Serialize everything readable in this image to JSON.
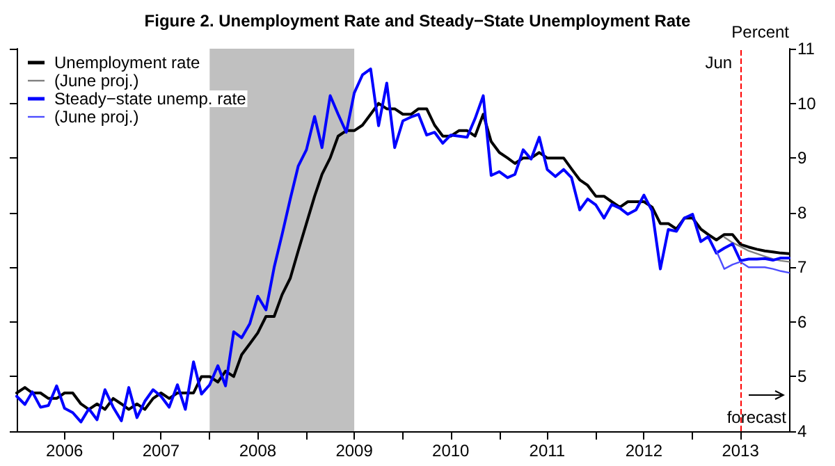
{
  "chart_data": {
    "type": "line",
    "title": "Figure 2. Unemployment Rate and Steady−State Unemployment Rate",
    "ylabel": "Percent",
    "x": [
      "2006-01",
      "2006-02",
      "2006-03",
      "2006-04",
      "2006-05",
      "2006-06",
      "2006-07",
      "2006-08",
      "2006-09",
      "2006-10",
      "2006-11",
      "2006-12",
      "2007-01",
      "2007-02",
      "2007-03",
      "2007-04",
      "2007-05",
      "2007-06",
      "2007-07",
      "2007-08",
      "2007-09",
      "2007-10",
      "2007-11",
      "2007-12",
      "2008-01",
      "2008-02",
      "2008-03",
      "2008-04",
      "2008-05",
      "2008-06",
      "2008-07",
      "2008-08",
      "2008-09",
      "2008-10",
      "2008-11",
      "2008-12",
      "2009-01",
      "2009-02",
      "2009-03",
      "2009-04",
      "2009-05",
      "2009-06",
      "2009-07",
      "2009-08",
      "2009-09",
      "2009-10",
      "2009-11",
      "2009-12",
      "2010-01",
      "2010-02",
      "2010-03",
      "2010-04",
      "2010-05",
      "2010-06",
      "2010-07",
      "2010-08",
      "2010-09",
      "2010-10",
      "2010-11",
      "2010-12",
      "2011-01",
      "2011-02",
      "2011-03",
      "2011-04",
      "2011-05",
      "2011-06",
      "2011-07",
      "2011-08",
      "2011-09",
      "2011-10",
      "2011-11",
      "2011-12",
      "2012-01",
      "2012-02",
      "2012-03",
      "2012-04",
      "2012-05",
      "2012-06",
      "2012-07",
      "2012-08",
      "2012-09",
      "2012-10",
      "2012-11",
      "2012-12",
      "2013-01",
      "2013-02",
      "2013-03",
      "2013-04",
      "2013-05",
      "2013-06",
      "2013-07",
      "2013-08",
      "2013-09",
      "2013-10",
      "2013-11",
      "2013-12",
      "2014-01"
    ],
    "series": [
      {
        "name": "Unemployment rate",
        "color": "#000000",
        "values": [
          4.7,
          4.8,
          4.7,
          4.7,
          4.6,
          4.6,
          4.7,
          4.7,
          4.5,
          4.4,
          4.5,
          4.4,
          4.6,
          4.5,
          4.4,
          4.5,
          4.4,
          4.6,
          4.7,
          4.6,
          4.7,
          4.7,
          4.7,
          5.0,
          5.0,
          4.9,
          5.1,
          5.0,
          5.4,
          5.6,
          5.8,
          6.1,
          6.1,
          6.5,
          6.8,
          7.3,
          7.8,
          8.3,
          8.7,
          9.0,
          9.4,
          9.5,
          9.5,
          9.6,
          9.8,
          10.0,
          9.9,
          9.9,
          9.8,
          9.8,
          9.9,
          9.9,
          9.6,
          9.4,
          9.4,
          9.5,
          9.5,
          9.4,
          9.8,
          9.3,
          9.1,
          9.0,
          8.9,
          9.0,
          9.0,
          9.1,
          9.0,
          9.0,
          9.0,
          8.8,
          8.6,
          8.5,
          8.3,
          8.3,
          8.2,
          8.1,
          8.2,
          8.2,
          8.2,
          8.1,
          7.8,
          7.8,
          7.7,
          7.9,
          7.9,
          7.7,
          7.6,
          7.5,
          7.6,
          7.6,
          7.42,
          7.37,
          7.33,
          7.3,
          7.28,
          7.26,
          7.25
        ]
      },
      {
        "name": "(June proj.)",
        "color": "#808080",
        "x": [
          "2013-05",
          "2013-06",
          "2013-07",
          "2013-08",
          "2013-09",
          "2013-10",
          "2013-11",
          "2013-12",
          "2014-01"
        ],
        "values": [
          7.55,
          7.45,
          7.38,
          7.3,
          7.25,
          7.2,
          7.15,
          7.12,
          7.1
        ]
      },
      {
        "name": "Steady−state unemp. rate",
        "color": "#0000ff",
        "values": [
          4.64,
          4.49,
          4.72,
          4.44,
          4.47,
          4.83,
          4.42,
          4.34,
          4.17,
          4.41,
          4.21,
          4.76,
          4.44,
          4.19,
          4.8,
          4.25,
          4.55,
          4.76,
          4.64,
          4.44,
          4.85,
          4.4,
          5.27,
          4.68,
          4.85,
          5.2,
          4.83,
          5.82,
          5.71,
          5.97,
          6.47,
          6.22,
          7.0,
          7.6,
          8.25,
          8.85,
          9.15,
          9.76,
          9.19,
          10.14,
          9.8,
          9.47,
          10.19,
          10.52,
          10.63,
          9.59,
          10.37,
          9.19,
          9.68,
          9.75,
          9.8,
          9.42,
          9.47,
          9.27,
          9.42,
          9.4,
          9.38,
          9.72,
          10.14,
          8.68,
          8.75,
          8.64,
          8.7,
          9.15,
          8.98,
          9.38,
          8.79,
          8.66,
          8.79,
          8.64,
          8.05,
          8.25,
          8.14,
          7.9,
          8.15,
          8.08,
          7.97,
          8.05,
          8.32,
          8.03,
          6.97,
          7.69,
          7.66,
          7.9,
          7.97,
          7.47,
          7.56,
          7.26,
          7.35,
          7.43,
          7.12,
          7.15,
          7.15,
          7.16,
          7.13,
          7.17,
          7.17
        ]
      },
      {
        "name": "(June proj.)",
        "color": "#4d4dff",
        "x": [
          "2013-04",
          "2013-05",
          "2013-06",
          "2013-07",
          "2013-08",
          "2013-09",
          "2013-10",
          "2013-11",
          "2013-12",
          "2014-01"
        ],
        "values": [
          7.3,
          6.97,
          7.05,
          7.1,
          7.0,
          7.0,
          7.0,
          6.97,
          6.93,
          6.9
        ]
      }
    ],
    "xlim": [
      "2006-01",
      "2014-01"
    ],
    "xticks": [
      {
        "value": "2006-07",
        "label": "2006"
      },
      {
        "value": "2007-01",
        "label": null
      },
      {
        "value": "2007-07",
        "label": "2007"
      },
      {
        "value": "2008-01",
        "label": null
      },
      {
        "value": "2008-07",
        "label": "2008"
      },
      {
        "value": "2009-01",
        "label": null
      },
      {
        "value": "2009-07",
        "label": "2009"
      },
      {
        "value": "2010-01",
        "label": null
      },
      {
        "value": "2010-07",
        "label": "2010"
      },
      {
        "value": "2011-01",
        "label": null
      },
      {
        "value": "2011-07",
        "label": "2011"
      },
      {
        "value": "2012-01",
        "label": null
      },
      {
        "value": "2012-07",
        "label": "2012"
      },
      {
        "value": "2013-01",
        "label": null
      },
      {
        "value": "2013-07",
        "label": "2013"
      }
    ],
    "ylim": [
      4,
      11
    ],
    "yticks": [
      4,
      5,
      6,
      7,
      8,
      9,
      10,
      11
    ],
    "bands": [
      {
        "axis": "x",
        "from": "2008-01",
        "to": "2009-07",
        "color": "#c0c0c0"
      }
    ],
    "ref_lines": [
      {
        "axis": "x",
        "value": "2013-07",
        "label": "Jun",
        "color": "#ff0000",
        "line_style": "dashed"
      }
    ],
    "annotations": [
      "forecast"
    ],
    "legend": "top left",
    "grid": false,
    "marker": "none",
    "line_style": "solid"
  }
}
